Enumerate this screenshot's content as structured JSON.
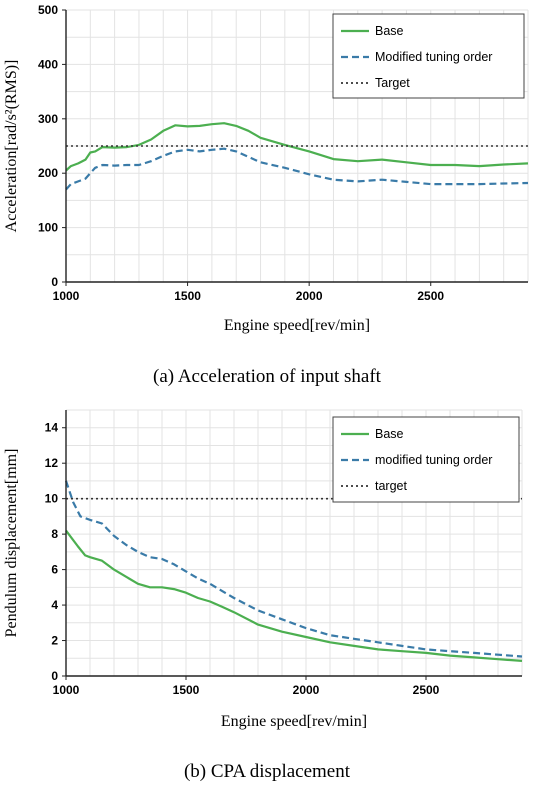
{
  "chart_data": [
    {
      "type": "line",
      "caption": "(a) Acceleration of input shaft",
      "xlabel": "Engine speed[rev/min]",
      "ylabel": "Acceleration[rad/s²(RMS)]",
      "xlim": [
        1000,
        2900
      ],
      "ylim": [
        0,
        500
      ],
      "xticks": [
        1000,
        1500,
        2000,
        2500
      ],
      "yticks": [
        0,
        100,
        200,
        300,
        400,
        500
      ],
      "grid": true,
      "legend_position": "top-right",
      "series": [
        {
          "name": "Base",
          "style": "solid",
          "color": "#4caf50",
          "x": [
            1000,
            1020,
            1050,
            1080,
            1100,
            1120,
            1150,
            1200,
            1250,
            1300,
            1350,
            1400,
            1450,
            1500,
            1550,
            1600,
            1650,
            1700,
            1750,
            1800,
            1900,
            2000,
            2100,
            2200,
            2300,
            2400,
            2500,
            2600,
            2700,
            2800,
            2900
          ],
          "y": [
            205,
            213,
            218,
            225,
            238,
            240,
            248,
            247,
            248,
            252,
            262,
            278,
            288,
            286,
            287,
            290,
            292,
            287,
            278,
            265,
            252,
            240,
            226,
            222,
            225,
            220,
            215,
            215,
            213,
            216,
            218
          ]
        },
        {
          "name": "Modified tuning order",
          "style": "dashed",
          "color": "#3a7ba8",
          "x": [
            1000,
            1020,
            1050,
            1080,
            1100,
            1120,
            1150,
            1200,
            1250,
            1300,
            1350,
            1400,
            1450,
            1500,
            1550,
            1600,
            1650,
            1700,
            1750,
            1800,
            1900,
            2000,
            2100,
            2200,
            2300,
            2400,
            2500,
            2600,
            2700,
            2800,
            2900
          ],
          "y": [
            170,
            180,
            185,
            190,
            200,
            210,
            215,
            214,
            215,
            215,
            222,
            232,
            240,
            243,
            240,
            243,
            245,
            240,
            230,
            220,
            210,
            198,
            188,
            185,
            188,
            184,
            180,
            180,
            180,
            181,
            182
          ]
        },
        {
          "name": "Target",
          "style": "dotted",
          "color": "#333333",
          "x": [
            1000,
            2900
          ],
          "y": [
            250,
            250
          ]
        }
      ]
    },
    {
      "type": "line",
      "caption": "(b) CPA displacement",
      "xlabel": "Engine speed[rev/min]",
      "ylabel": "Pendulum displacement[mm]",
      "xlim": [
        1000,
        2900
      ],
      "ylim": [
        0,
        15
      ],
      "xticks": [
        1000,
        1500,
        2000,
        2500
      ],
      "yticks": [
        0,
        2,
        4,
        6,
        8,
        10,
        12,
        14
      ],
      "grid": true,
      "legend_position": "top-right",
      "series": [
        {
          "name": "Base",
          "style": "solid",
          "color": "#4caf50",
          "x": [
            1000,
            1050,
            1080,
            1100,
            1150,
            1200,
            1250,
            1300,
            1350,
            1400,
            1450,
            1500,
            1550,
            1600,
            1650,
            1700,
            1800,
            1900,
            2000,
            2100,
            2200,
            2300,
            2400,
            2500,
            2600,
            2700,
            2800,
            2900
          ],
          "y": [
            8.2,
            7.3,
            6.8,
            6.7,
            6.5,
            6.0,
            5.6,
            5.2,
            5.0,
            5.0,
            4.9,
            4.7,
            4.4,
            4.2,
            3.9,
            3.6,
            2.9,
            2.5,
            2.2,
            1.9,
            1.7,
            1.5,
            1.4,
            1.3,
            1.15,
            1.05,
            0.95,
            0.85
          ]
        },
        {
          "name": "modified tuning order",
          "style": "dashed",
          "color": "#3a7ba8",
          "x": [
            1000,
            1030,
            1060,
            1100,
            1150,
            1200,
            1250,
            1300,
            1350,
            1400,
            1450,
            1500,
            1550,
            1600,
            1650,
            1700,
            1800,
            1900,
            2000,
            2100,
            2200,
            2300,
            2400,
            2500,
            2600,
            2700,
            2800,
            2900
          ],
          "y": [
            11.0,
            9.8,
            9.0,
            8.8,
            8.6,
            7.9,
            7.4,
            7.0,
            6.7,
            6.6,
            6.3,
            5.9,
            5.5,
            5.2,
            4.8,
            4.4,
            3.7,
            3.2,
            2.7,
            2.3,
            2.1,
            1.9,
            1.7,
            1.5,
            1.4,
            1.3,
            1.2,
            1.1
          ]
        },
        {
          "name": "target",
          "style": "dotted",
          "color": "#333333",
          "x": [
            1000,
            2900
          ],
          "y": [
            10,
            10
          ]
        }
      ]
    }
  ]
}
